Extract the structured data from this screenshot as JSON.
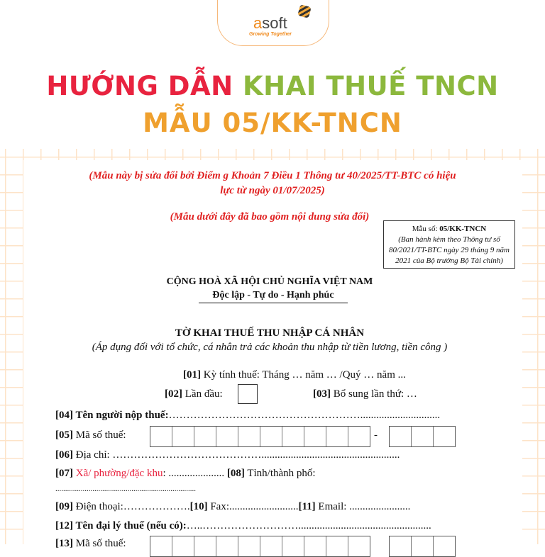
{
  "brand": {
    "logo_a": "a",
    "logo_rest": "soft",
    "tagline": "Growing Together",
    "accent": "#f08a1c"
  },
  "headline": {
    "part1": "HƯỚNG DẪN ",
    "part2": "KHAI THUẾ TNCN",
    "line2": "MẪU 05/KK-TNCN",
    "colors": {
      "red": "#e8233f",
      "green": "#8cb83d",
      "orange": "#efa02e"
    }
  },
  "document": {
    "amend_note_1": "(Mẫu này bị sửa đổi bởi Điểm g Khoản 7 Điều 1 Thông tư 40/2025/TT-BTC có hiệu",
    "amend_note_2": "lực từ ngày 01/07/2025)",
    "amend_note_3": "(Mẫu dưới đây đã bao gồm nội dung sửa đổi)",
    "form_box": {
      "label": "Mẫu số: ",
      "code": "05/KK-TNCN",
      "line1": "(Ban hành kèm theo Thông tư số",
      "line2": "80/2021/TT-BTC ngày 29 tháng 9 năm",
      "line3": "2021 của Bộ trưởng Bộ Tài chính)"
    },
    "nation": "CỘNG HOÀ XÃ HỘI CHỦ NGHĨA VIỆT NAM",
    "motto": "Độc lập - Tự do - Hạnh phúc",
    "form_title": "TỜ KHAI THUẾ THU NHẬP CÁ NHÂN",
    "form_subtitle": "(Áp dụng đối với tổ chức, cá nhân trả các khoản thu nhập từ tiền lương, tiền công )",
    "f01": {
      "code": "[01]",
      "text": " Kỳ tính thuế:   Tháng … năm …  /Quý … năm ..."
    },
    "f02": {
      "code": "[02]",
      "text": " Lần đầu:"
    },
    "f03": {
      "code": "[03]",
      "text": " Bổ sung lần thứ: …"
    },
    "f04": {
      "code": "[04] Tên người nộp thuế:",
      "dots": "……………………………………………….............................."
    },
    "f05": {
      "code": "[05]",
      "text": " Mã số thuế:",
      "dash": "-"
    },
    "f06": {
      "code": "[06]",
      "text": " Địa chỉ: ……………………………………...................................................."
    },
    "f07": {
      "code": "[07]",
      "text_red": " Xã/ phường/đặc khu",
      "text": ": ....................."
    },
    "f08": {
      "code": "[08]",
      "text": " Tỉnh/thành phố:",
      "dots": "........................................................................"
    },
    "f09": {
      "code": "[09]",
      "text": " Điện thoại:………………."
    },
    "f10": {
      "code": "[10]",
      "text": " Fax:.........................."
    },
    "f11": {
      "code": "[11]",
      "text": " Email: ......................."
    },
    "f12": {
      "code": "[12] Tên đại lý thuế (nếu có):",
      "dots": "…..……………………….................................................."
    },
    "f13": {
      "code": "[13]",
      "text": " Mã số thuế:"
    }
  }
}
